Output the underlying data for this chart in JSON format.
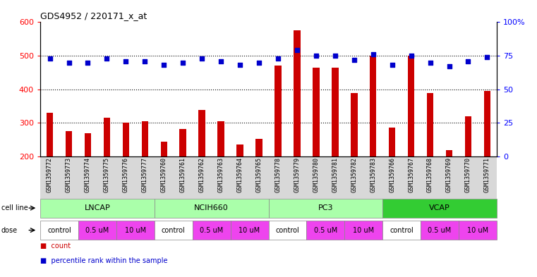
{
  "title": "GDS4952 / 220171_x_at",
  "samples": [
    "GSM1359772",
    "GSM1359773",
    "GSM1359774",
    "GSM1359775",
    "GSM1359776",
    "GSM1359777",
    "GSM1359760",
    "GSM1359761",
    "GSM1359762",
    "GSM1359763",
    "GSM1359764",
    "GSM1359765",
    "GSM1359778",
    "GSM1359779",
    "GSM1359780",
    "GSM1359781",
    "GSM1359782",
    "GSM1359783",
    "GSM1359766",
    "GSM1359767",
    "GSM1359768",
    "GSM1359769",
    "GSM1359770",
    "GSM1359771"
  ],
  "counts": [
    330,
    275,
    270,
    315,
    300,
    305,
    245,
    282,
    338,
    305,
    235,
    252,
    470,
    575,
    465,
    465,
    388,
    500,
    287,
    500,
    388,
    218,
    320,
    395
  ],
  "percentile_ranks": [
    73,
    70,
    70,
    73,
    71,
    71,
    68,
    70,
    73,
    71,
    68,
    70,
    73,
    79,
    75,
    75,
    72,
    76,
    68,
    75,
    70,
    67,
    71,
    74
  ],
  "bar_color": "#CC0000",
  "dot_color": "#0000CC",
  "ylim_left": [
    200,
    600
  ],
  "ylim_right": [
    0,
    100
  ],
  "yticks_left": [
    200,
    300,
    400,
    500,
    600
  ],
  "yticks_right": [
    0,
    25,
    50,
    75,
    100
  ],
  "ytick_right_labels": [
    "0",
    "25",
    "50",
    "75",
    "100%"
  ],
  "grid_lines": [
    300,
    400,
    500
  ],
  "cell_line_groups": [
    {
      "name": "LNCAP",
      "start": 0,
      "end": 6,
      "color": "#aaffaa"
    },
    {
      "name": "NCIH660",
      "start": 6,
      "end": 12,
      "color": "#aaffaa"
    },
    {
      "name": "PC3",
      "start": 12,
      "end": 18,
      "color": "#aaffaa"
    },
    {
      "name": "VCAP",
      "start": 18,
      "end": 24,
      "color": "#33cc33"
    }
  ],
  "dose_groups": [
    {
      "label": "control",
      "start": 0,
      "end": 2,
      "color": "#ffffff"
    },
    {
      "label": "0.5 uM",
      "start": 2,
      "end": 4,
      "color": "#ee44ee"
    },
    {
      "label": "10 uM",
      "start": 4,
      "end": 6,
      "color": "#ee44ee"
    },
    {
      "label": "control",
      "start": 6,
      "end": 8,
      "color": "#ffffff"
    },
    {
      "label": "0.5 uM",
      "start": 8,
      "end": 10,
      "color": "#ee44ee"
    },
    {
      "label": "10 uM",
      "start": 10,
      "end": 12,
      "color": "#ee44ee"
    },
    {
      "label": "control",
      "start": 12,
      "end": 14,
      "color": "#ffffff"
    },
    {
      "label": "0.5 uM",
      "start": 14,
      "end": 16,
      "color": "#ee44ee"
    },
    {
      "label": "10 uM",
      "start": 16,
      "end": 18,
      "color": "#ee44ee"
    },
    {
      "label": "control",
      "start": 18,
      "end": 20,
      "color": "#ffffff"
    },
    {
      "label": "0.5 uM",
      "start": 20,
      "end": 22,
      "color": "#ee44ee"
    },
    {
      "label": "10 uM",
      "start": 22,
      "end": 24,
      "color": "#ee44ee"
    }
  ],
  "legend_items": [
    {
      "label": "count",
      "color": "#CC0000",
      "marker": "s"
    },
    {
      "label": "percentile rank within the sample",
      "color": "#0000CC",
      "marker": "s"
    }
  ]
}
